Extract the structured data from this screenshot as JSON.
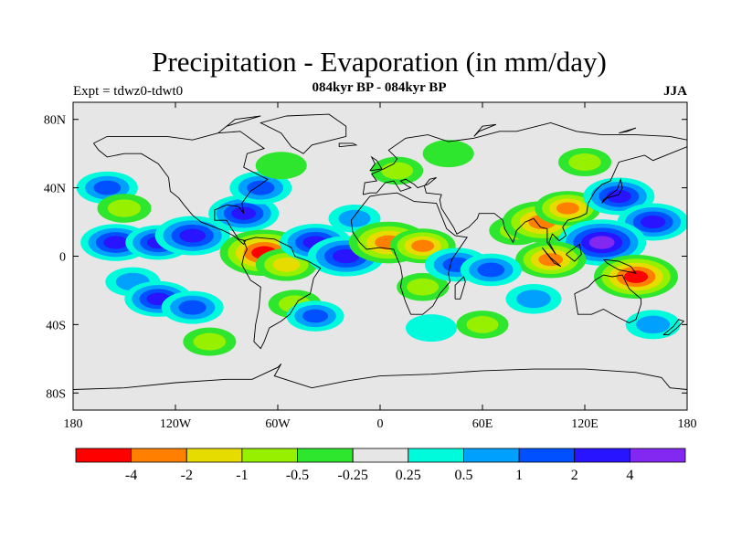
{
  "title": "Precipitation - Evaporation (in mm/day)",
  "subtitle": "084kyr BP - 084kyr BP",
  "expt_label": "Expt = tdwz0-tdwt0",
  "season": "JJA",
  "chart_data": {
    "type": "heatmap",
    "projection": "cylindrical-equidistant",
    "lon_range": [
      -180,
      180
    ],
    "lat_range": [
      -90,
      90
    ],
    "x_ticks": [
      {
        "value": -180,
        "label": "180"
      },
      {
        "value": -120,
        "label": "120W"
      },
      {
        "value": -60,
        "label": "60W"
      },
      {
        "value": 0,
        "label": "0"
      },
      {
        "value": 60,
        "label": "60E"
      },
      {
        "value": 120,
        "label": "120E"
      },
      {
        "value": 180,
        "label": "180"
      }
    ],
    "y_ticks": [
      {
        "value": 80,
        "label": "80N"
      },
      {
        "value": 40,
        "label": "40N"
      },
      {
        "value": 0,
        "label": "0"
      },
      {
        "value": -40,
        "label": "40S"
      },
      {
        "value": -80,
        "label": "80S"
      }
    ],
    "levels": [
      {
        "label": "-4",
        "value": -4
      },
      {
        "label": "-2",
        "value": -2
      },
      {
        "label": "-1",
        "value": -1
      },
      {
        "label": "-0.5",
        "value": -0.5
      },
      {
        "label": "-0.25",
        "value": -0.25
      },
      {
        "label": "0.25",
        "value": 0.25
      },
      {
        "label": "0.5",
        "value": 0.5
      },
      {
        "label": "1",
        "value": 1
      },
      {
        "label": "2",
        "value": 2
      },
      {
        "label": "4",
        "value": 4
      }
    ],
    "colors": [
      "#ff0000",
      "#ff8000",
      "#e6dc00",
      "#96f000",
      "#2de62d",
      "#e6e6e6",
      "#00fadc",
      "#00a0ff",
      "#0050ff",
      "#2814ff",
      "#8228f0"
    ],
    "fields": [
      {
        "lon": -160,
        "lat": 40,
        "value": 1.5
      },
      {
        "lon": -150,
        "lat": 28,
        "value": -0.7
      },
      {
        "lon": -155,
        "lat": 8,
        "value": 2.5
      },
      {
        "lon": -130,
        "lat": 8,
        "value": 2.0
      },
      {
        "lon": -110,
        "lat": 12,
        "value": 3.0
      },
      {
        "lon": -145,
        "lat": -15,
        "value": 0.8
      },
      {
        "lon": -130,
        "lat": -25,
        "value": 2.2
      },
      {
        "lon": -110,
        "lat": -30,
        "value": 1.6
      },
      {
        "lon": -80,
        "lat": 25,
        "value": 2.5
      },
      {
        "lon": -70,
        "lat": 40,
        "value": 1.6
      },
      {
        "lon": -58,
        "lat": 53,
        "value": -0.4
      },
      {
        "lon": -68,
        "lat": 2,
        "value": -4.5
      },
      {
        "lon": -55,
        "lat": -5,
        "value": -1.5
      },
      {
        "lon": -50,
        "lat": -28,
        "value": -0.6
      },
      {
        "lon": -38,
        "lat": -35,
        "value": 1.1
      },
      {
        "lon": -38,
        "lat": 8,
        "value": 2.6
      },
      {
        "lon": -20,
        "lat": 0,
        "value": 3.2
      },
      {
        "lon": -15,
        "lat": 22,
        "value": 0.5
      },
      {
        "lon": 5,
        "lat": 8,
        "value": -3.5
      },
      {
        "lon": 25,
        "lat": 6,
        "value": -2.0
      },
      {
        "lon": 25,
        "lat": -18,
        "value": -0.5
      },
      {
        "lon": 45,
        "lat": -5,
        "value": 1.8
      },
      {
        "lon": 30,
        "lat": -42,
        "value": 0.4
      },
      {
        "lon": 10,
        "lat": 50,
        "value": -0.5
      },
      {
        "lon": 40,
        "lat": 60,
        "value": -0.4
      },
      {
        "lon": 80,
        "lat": 15,
        "value": -0.8
      },
      {
        "lon": 95,
        "lat": 20,
        "value": -3.5
      },
      {
        "lon": 110,
        "lat": 28,
        "value": -2.0
      },
      {
        "lon": 140,
        "lat": 35,
        "value": 2.6
      },
      {
        "lon": 160,
        "lat": 20,
        "value": 2.6
      },
      {
        "lon": 130,
        "lat": 8,
        "value": 4.5
      },
      {
        "lon": 100,
        "lat": -2,
        "value": -2.5
      },
      {
        "lon": 150,
        "lat": -12,
        "value": -4.0
      },
      {
        "lon": 90,
        "lat": -25,
        "value": 0.9
      },
      {
        "lon": 65,
        "lat": -8,
        "value": 1.5
      },
      {
        "lon": 160,
        "lat": -40,
        "value": 0.8
      },
      {
        "lon": 60,
        "lat": -40,
        "value": -0.5
      },
      {
        "lon": -100,
        "lat": -50,
        "value": -0.6
      },
      {
        "lon": 120,
        "lat": 55,
        "value": -0.6
      }
    ]
  }
}
